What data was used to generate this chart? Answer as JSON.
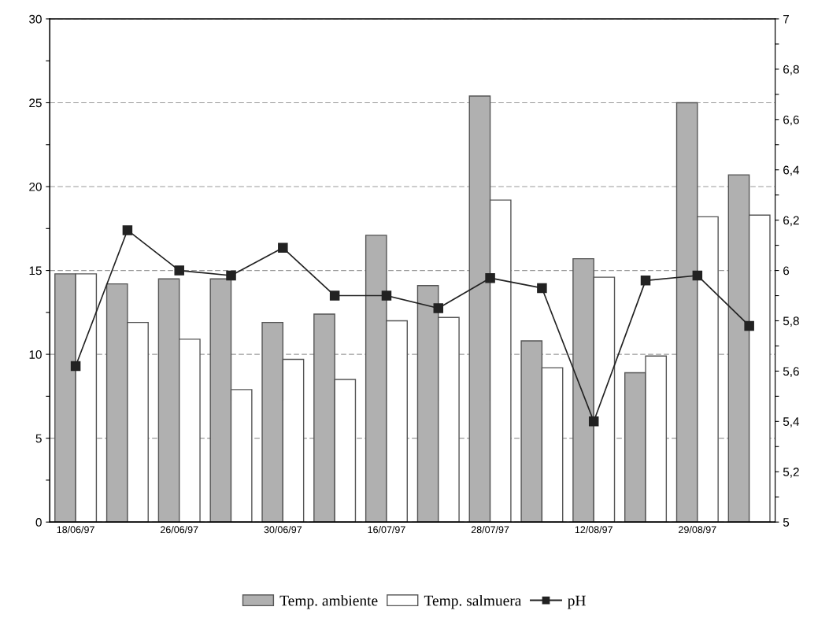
{
  "chart_data": {
    "type": "bar",
    "categories": [
      "18/06/97",
      null,
      "26/06/97",
      null,
      "30/06/97",
      null,
      "16/07/97",
      null,
      "28/07/97",
      null,
      "12/08/97",
      null,
      "29/08/97",
      null
    ],
    "series": [
      {
        "name": "Temp. ambiente",
        "color": "#b0b0b0",
        "values": [
          14.8,
          14.2,
          14.5,
          14.5,
          11.9,
          12.4,
          17.1,
          14.1,
          25.4,
          10.8,
          15.7,
          8.9,
          25.0,
          20.7
        ]
      },
      {
        "name": "Temp. salmuera",
        "color": "#ffffff",
        "values": [
          14.8,
          11.9,
          10.9,
          7.9,
          9.7,
          8.5,
          12.0,
          12.2,
          19.2,
          9.2,
          14.6,
          9.9,
          18.2,
          18.3
        ]
      },
      {
        "name": "pH",
        "type": "line",
        "axis": "y2",
        "color": "#222222",
        "marker": "square",
        "values": [
          5.62,
          6.16,
          6.0,
          5.98,
          6.09,
          5.9,
          5.9,
          5.85,
          5.97,
          5.93,
          5.4,
          5.96,
          5.98,
          5.78
        ]
      }
    ],
    "ylim": [
      0,
      30
    ],
    "yticks": [
      0,
      {
        "value": 2.5,
        "label": null
      },
      5,
      {
        "value": 7.5,
        "label": null
      },
      10,
      {
        "value": 12.5,
        "label": null
      },
      15,
      {
        "value": 17.5,
        "label": null
      },
      20,
      {
        "value": 22.5,
        "label": null
      },
      25,
      {
        "value": 27.5,
        "label": null
      },
      30
    ],
    "y2lim": [
      5,
      7
    ],
    "y2ticks": [
      5,
      {
        "value": 5.1,
        "label": null
      },
      {
        "value": 5.2,
        "label": "5,2"
      },
      {
        "value": 5.3,
        "label": null
      },
      {
        "value": 5.4,
        "label": "5,4"
      },
      {
        "value": 5.5,
        "label": null
      },
      {
        "value": 5.6,
        "label": "5,6"
      },
      {
        "value": 5.7,
        "label": null
      },
      {
        "value": 5.8,
        "label": "5,8"
      },
      {
        "value": 5.9,
        "label": null
      },
      6,
      {
        "value": 6.1,
        "label": null
      },
      {
        "value": 6.2,
        "label": "6,2"
      },
      {
        "value": 6.3,
        "label": null
      },
      {
        "value": 6.4,
        "label": "6,4"
      },
      {
        "value": 6.5,
        "label": null
      },
      {
        "value": 6.6,
        "label": "6,6"
      },
      {
        "value": 6.7,
        "label": null
      },
      {
        "value": 6.8,
        "label": "6,8"
      },
      {
        "value": 6.9,
        "label": null
      },
      7
    ],
    "grid": "y",
    "legend": "bottom"
  }
}
